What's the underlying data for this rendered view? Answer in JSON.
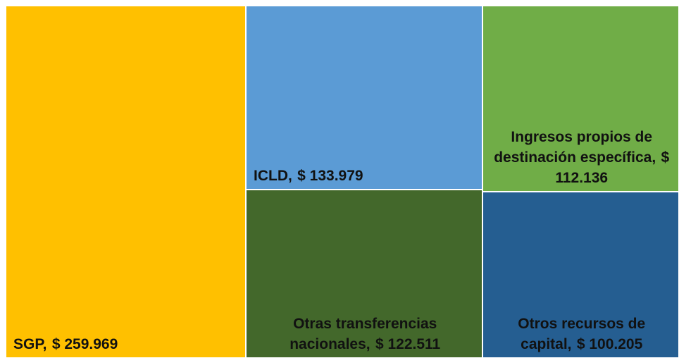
{
  "chart_data": {
    "type": "treemap",
    "categories": [
      "SGP,",
      "ICLD,",
      "Otras transferencias nacionales,",
      "Ingresos propios de destinación específica,",
      "Otros recursos de capital,"
    ],
    "values": [
      259969,
      133979,
      122511,
      112136,
      100205
    ],
    "value_labels": [
      "$ 259.969",
      "$ 133.979",
      "$ 122.511",
      "$ 112.136",
      "$ 100.205"
    ],
    "colors": [
      "#ffc000",
      "#5b9bd5",
      "#43682b",
      "#70ad47",
      "#255e91"
    ]
  }
}
